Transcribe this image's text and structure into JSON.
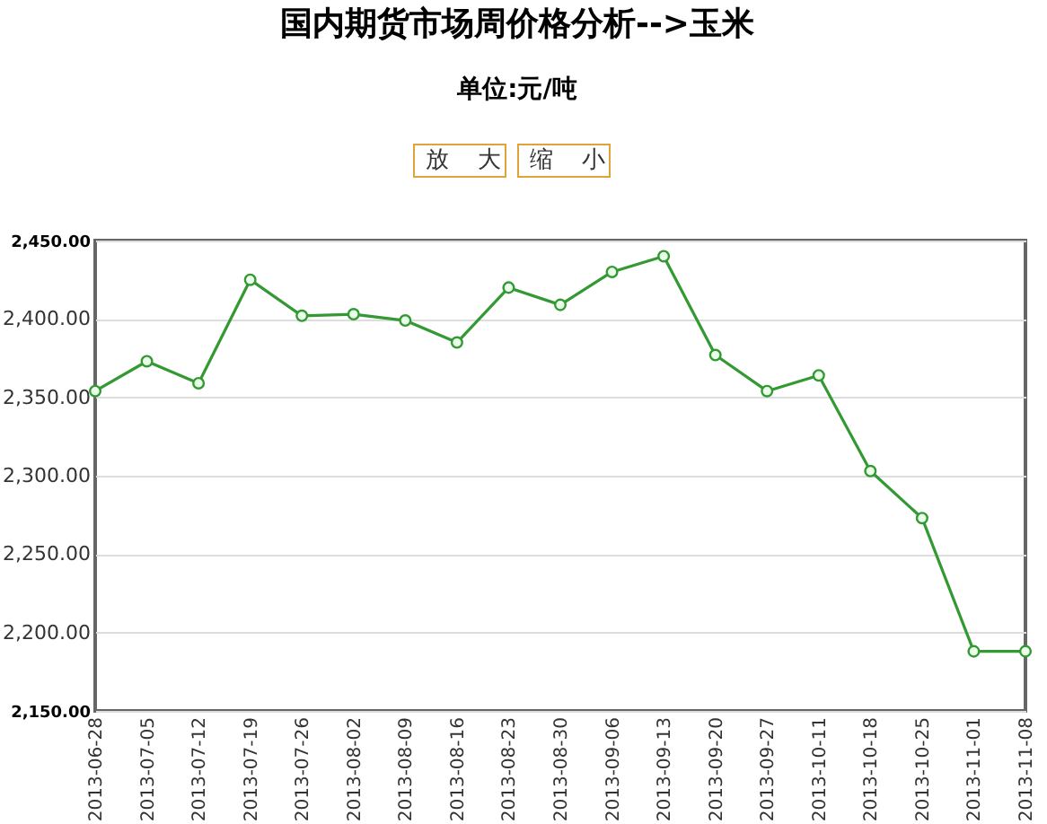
{
  "chart_data": {
    "type": "line",
    "title": "国内期货市场周价格分析-->玉米",
    "subtitle": "单位:元/吨",
    "annotations": [
      "放 大",
      "缩 小"
    ],
    "categories": [
      "2013-06-28",
      "2013-07-05",
      "2013-07-12",
      "2013-07-19",
      "2013-07-26",
      "2013-08-02",
      "2013-08-09",
      "2013-08-16",
      "2013-08-23",
      "2013-08-30",
      "2013-09-06",
      "2013-09-13",
      "2013-09-20",
      "2013-09-27",
      "2013-10-11",
      "2013-10-18",
      "2013-10-25",
      "2013-11-01",
      "2013-11-08"
    ],
    "series": [
      {
        "color": "#339933",
        "values": [
          2354,
          2373,
          2359,
          2425,
          2402,
          2403,
          2399,
          2385,
          2420,
          2409,
          2430,
          2440,
          2377,
          2354,
          2364,
          2303,
          2273,
          2188,
          2188
        ]
      }
    ],
    "ylim": [
      2150,
      2450
    ],
    "yticks": [
      {
        "value": 2150,
        "label": "2,150.00"
      },
      {
        "value": 2200,
        "label": "2,200.00"
      },
      {
        "value": 2250,
        "label": "2,250.00"
      },
      {
        "value": 2300,
        "label": "2,300.00"
      },
      {
        "value": 2350,
        "label": "2,350.00"
      },
      {
        "value": 2400,
        "label": "2,400.00"
      },
      {
        "value": 2450,
        "label": "2,450.00"
      }
    ],
    "grid": "y",
    "marker": "circle",
    "line_style": "solid"
  }
}
